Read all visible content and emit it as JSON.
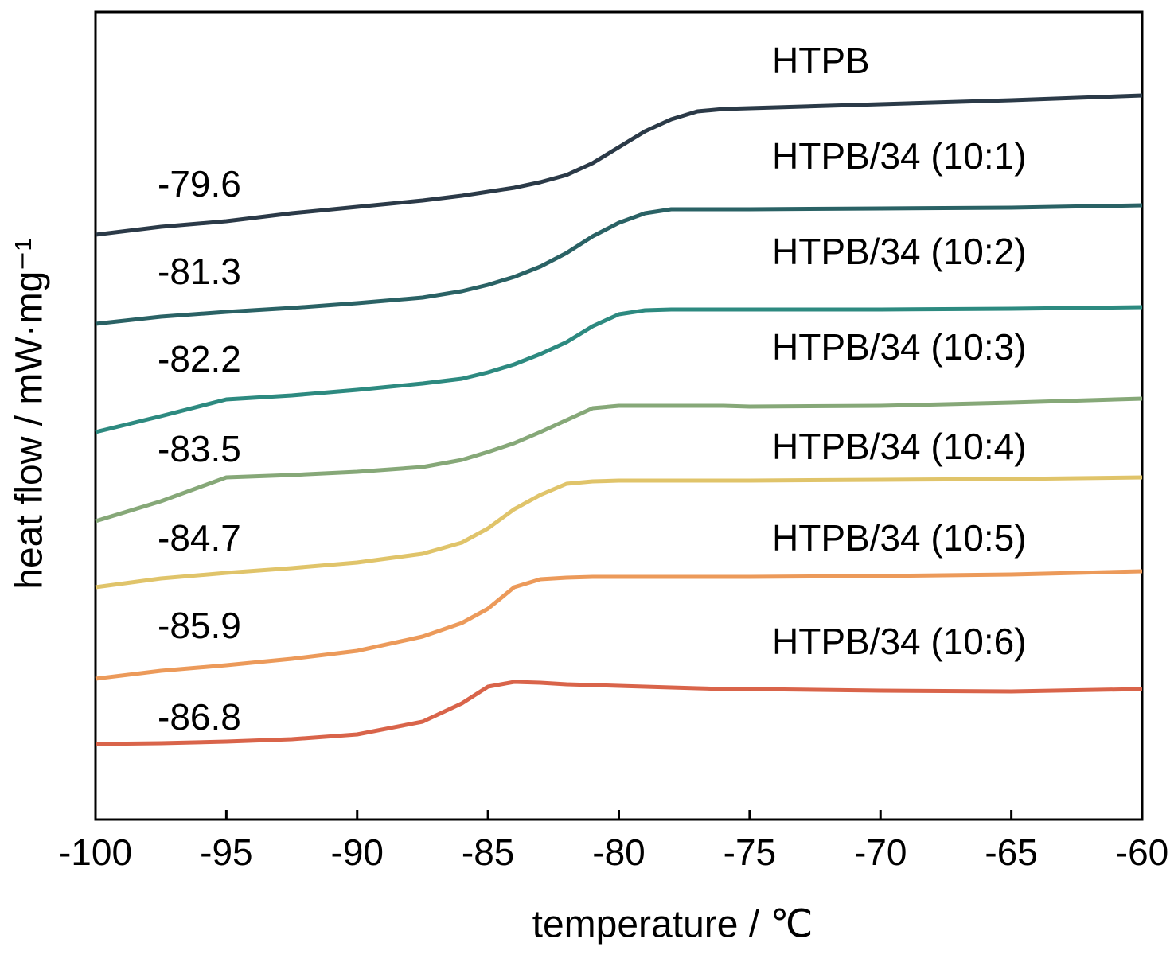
{
  "chart_data": {
    "type": "line",
    "xlabel": "temperature / ℃",
    "ylabel": "heat flow / mW·mg⁻¹",
    "x": [
      -100,
      -97.5,
      -95,
      -92.5,
      -90,
      -87.5,
      -86,
      -85,
      -84,
      -83,
      -82,
      -81,
      -80,
      -79,
      -78,
      -77,
      -76,
      -75,
      -70,
      -65,
      -60
    ],
    "xlim": [
      -100,
      -60
    ],
    "xticks": [
      -100,
      -95,
      -90,
      -85,
      -80,
      -75,
      -70,
      -65,
      -60
    ],
    "ylim": [
      0,
      1015
    ],
    "series": [
      {
        "name": "HTPB",
        "tg": -79.6,
        "color": "#2b3a48",
        "values": [
          735,
          745,
          752,
          762,
          770,
          778,
          784,
          789,
          794,
          801,
          810,
          825,
          845,
          865,
          880,
          890,
          893,
          894,
          899,
          904,
          910
        ]
      },
      {
        "name": "HTPB/34 (10:1)",
        "tg": -81.3,
        "color": "#2a6265",
        "values": [
          623,
          632,
          638,
          643,
          649,
          656,
          664,
          672,
          682,
          695,
          712,
          733,
          750,
          762,
          767,
          767,
          767,
          767,
          768,
          769,
          772
        ]
      },
      {
        "name": "HTPB/34 (10:2)",
        "tg": -82.2,
        "color": "#2d8a80",
        "values": [
          487,
          507,
          528,
          533,
          540,
          548,
          554,
          562,
          572,
          585,
          600,
          620,
          635,
          640,
          641,
          641,
          641,
          641,
          641,
          642,
          644
        ]
      },
      {
        "name": "HTPB/34 (10:3)",
        "tg": -83.5,
        "color": "#86a878",
        "values": [
          375,
          400,
          430,
          433,
          437,
          443,
          452,
          462,
          473,
          487,
          502,
          517,
          520,
          520,
          520,
          520,
          520,
          519,
          520,
          524,
          529
        ]
      },
      {
        "name": "HTPB/34 (10:4)",
        "tg": -84.7,
        "color": "#e0c46a",
        "values": [
          292,
          303,
          310,
          316,
          323,
          334,
          348,
          366,
          390,
          408,
          422,
          425,
          426,
          426,
          426,
          426,
          426,
          426,
          427,
          428,
          430
        ]
      },
      {
        "name": "HTPB/34 (10:5)",
        "tg": -85.9,
        "color": "#ec9a5a",
        "values": [
          177,
          187,
          194,
          202,
          212,
          230,
          247,
          265,
          292,
          302,
          304,
          305,
          305,
          305,
          305,
          305,
          305,
          305,
          306,
          308,
          312
        ]
      },
      {
        "name": "HTPB/34 (10:6)",
        "tg": -86.8,
        "color": "#d9644a",
        "values": [
          95,
          96,
          98,
          101,
          107,
          123,
          146,
          167,
          173,
          172,
          170,
          169,
          168,
          167,
          166,
          165,
          164,
          164,
          162,
          161,
          164
        ]
      }
    ]
  }
}
